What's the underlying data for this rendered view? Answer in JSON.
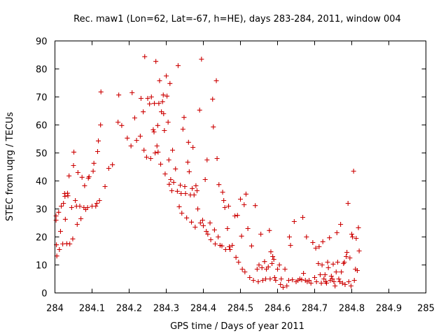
{
  "chart_data": {
    "type": "scatter",
    "title": "Rec. maw1 (Lon=62, Lat=-67, h=HE), days 283-284, 2011, window 004",
    "xlabel": "GPS time / Days of year 2011",
    "ylabel": "STEC from uqrg / TECUs",
    "xlim": [
      284,
      285
    ],
    "ylim": [
      0,
      90
    ],
    "xticks": [
      "284",
      "284.1",
      "284.2",
      "284.3",
      "284.4",
      "284.5",
      "284.6",
      "284.7",
      "284.8",
      "284.9",
      "285"
    ],
    "yticks": [
      "0",
      "10",
      "20",
      "30",
      "40",
      "50",
      "60",
      "70",
      "80",
      "90"
    ],
    "grid": false,
    "legend": "none",
    "marker": "plus",
    "color": "#cc0000",
    "points": [
      [
        284.003,
        27.5
      ],
      [
        284.003,
        26
      ],
      [
        284.004,
        17.2
      ],
      [
        284.005,
        13.2
      ],
      [
        284.01,
        28.8
      ],
      [
        284.012,
        15.5
      ],
      [
        284.015,
        22
      ],
      [
        284.017,
        31
      ],
      [
        284.021,
        17.5
      ],
      [
        284.023,
        32
      ],
      [
        284.026,
        35.5
      ],
      [
        284.027,
        34.5
      ],
      [
        284.028,
        26.3
      ],
      [
        284.032,
        17.6
      ],
      [
        284.034,
        35.6
      ],
      [
        284.035,
        34.7
      ],
      [
        284.038,
        41.8
      ],
      [
        284.04,
        17.5
      ],
      [
        284.045,
        30.5
      ],
      [
        284.048,
        19.3
      ],
      [
        284.05,
        45.5
      ],
      [
        284.051,
        50.3
      ],
      [
        284.055,
        33
      ],
      [
        284.058,
        31
      ],
      [
        284.06,
        24.5
      ],
      [
        284.062,
        43
      ],
      [
        284.067,
        31
      ],
      [
        284.07,
        26.5
      ],
      [
        284.073,
        41.3
      ],
      [
        284.078,
        30.5
      ],
      [
        284.08,
        38.3
      ],
      [
        284.083,
        29.8
      ],
      [
        284.088,
        30.5
      ],
      [
        284.09,
        41
      ],
      [
        284.092,
        41.5
      ],
      [
        284.1,
        31
      ],
      [
        284.103,
        43.5
      ],
      [
        284.105,
        46.3
      ],
      [
        284.11,
        31
      ],
      [
        284.113,
        32
      ],
      [
        284.115,
        50.5
      ],
      [
        284.117,
        54.3
      ],
      [
        284.12,
        33
      ],
      [
        284.123,
        60
      ],
      [
        284.124,
        71.8
      ],
      [
        284.135,
        38
      ],
      [
        284.145,
        44.5
      ],
      [
        284.155,
        45.8
      ],
      [
        284.17,
        61
      ],
      [
        284.172,
        70.7
      ],
      [
        284.18,
        59.8
      ],
      [
        284.195,
        55.3
      ],
      [
        284.205,
        52.5
      ],
      [
        284.208,
        71.5
      ],
      [
        284.215,
        62.5
      ],
      [
        284.22,
        54.5
      ],
      [
        284.23,
        56
      ],
      [
        284.232,
        69.5
      ],
      [
        284.238,
        64.7
      ],
      [
        284.24,
        51
      ],
      [
        284.242,
        84.4
      ],
      [
        284.247,
        48.5
      ],
      [
        284.25,
        69.5
      ],
      [
        284.255,
        67.5
      ],
      [
        284.258,
        48
      ],
      [
        284.26,
        70
      ],
      [
        284.265,
        58.3
      ],
      [
        284.267,
        57.5
      ],
      [
        284.268,
        67.7
      ],
      [
        284.27,
        50
      ],
      [
        284.272,
        82.7
      ],
      [
        284.275,
        52.5
      ],
      [
        284.277,
        59.8
      ],
      [
        284.278,
        50.3
      ],
      [
        284.28,
        67.7
      ],
      [
        284.282,
        75.8
      ],
      [
        284.285,
        46
      ],
      [
        284.287,
        64.7
      ],
      [
        284.29,
        68.3
      ],
      [
        284.292,
        70.7
      ],
      [
        284.293,
        64
      ],
      [
        284.295,
        58
      ],
      [
        284.297,
        42.5
      ],
      [
        284.3,
        77.5
      ],
      [
        284.302,
        70.3
      ],
      [
        284.305,
        61
      ],
      [
        284.307,
        47.5
      ],
      [
        284.308,
        38.8
      ],
      [
        284.31,
        74.8
      ],
      [
        284.312,
        40.5
      ],
      [
        284.315,
        36.5
      ],
      [
        284.317,
        51
      ],
      [
        284.32,
        39.5
      ],
      [
        284.325,
        44.3
      ],
      [
        284.33,
        36.3
      ],
      [
        284.332,
        81.2
      ],
      [
        284.335,
        30.8
      ],
      [
        284.338,
        38.5
      ],
      [
        284.34,
        35.5
      ],
      [
        284.342,
        28.5
      ],
      [
        284.345,
        58.5
      ],
      [
        284.348,
        62.7
      ],
      [
        284.35,
        38
      ],
      [
        284.352,
        35.5
      ],
      [
        284.355,
        26.8
      ],
      [
        284.358,
        46.7
      ],
      [
        284.36,
        53.8
      ],
      [
        284.362,
        43.3
      ],
      [
        284.365,
        35
      ],
      [
        284.368,
        25.3
      ],
      [
        284.37,
        37.3
      ],
      [
        284.372,
        52
      ],
      [
        284.375,
        35
      ],
      [
        284.378,
        23.5
      ],
      [
        284.38,
        38.3
      ],
      [
        284.383,
        36.5
      ],
      [
        284.385,
        30
      ],
      [
        284.39,
        65.3
      ],
      [
        284.392,
        25
      ],
      [
        284.395,
        83.5
      ],
      [
        284.398,
        26
      ],
      [
        284.4,
        24
      ],
      [
        284.405,
        40.5
      ],
      [
        284.408,
        22
      ],
      [
        284.41,
        47.5
      ],
      [
        284.412,
        21
      ],
      [
        284.418,
        25
      ],
      [
        284.42,
        19
      ],
      [
        284.425,
        69.2
      ],
      [
        284.427,
        59.3
      ],
      [
        284.43,
        22.5
      ],
      [
        284.432,
        17.5
      ],
      [
        284.435,
        75.8
      ],
      [
        284.437,
        48
      ],
      [
        284.44,
        20
      ],
      [
        284.442,
        38.7
      ],
      [
        284.445,
        17
      ],
      [
        284.45,
        16.8
      ],
      [
        284.452,
        36
      ],
      [
        284.455,
        33
      ],
      [
        284.458,
        30.5
      ],
      [
        284.46,
        15.5
      ],
      [
        284.465,
        23
      ],
      [
        284.468,
        31
      ],
      [
        284.47,
        16.5
      ],
      [
        284.472,
        15.5
      ],
      [
        284.478,
        17
      ],
      [
        284.485,
        27.5
      ],
      [
        284.488,
        12.7
      ],
      [
        284.492,
        27.7
      ],
      [
        284.495,
        11
      ],
      [
        284.5,
        33.5
      ],
      [
        284.503,
        20.3
      ],
      [
        284.505,
        8.5
      ],
      [
        284.51,
        31.5
      ],
      [
        284.512,
        7.5
      ],
      [
        284.515,
        35.3
      ],
      [
        284.52,
        23
      ],
      [
        284.525,
        5.5
      ],
      [
        284.53,
        16.8
      ],
      [
        284.535,
        4.5
      ],
      [
        284.54,
        31.2
      ],
      [
        284.545,
        8.5
      ],
      [
        284.548,
        4
      ],
      [
        284.55,
        10
      ],
      [
        284.555,
        21
      ],
      [
        284.558,
        9
      ],
      [
        284.56,
        4.5
      ],
      [
        284.565,
        11.2
      ],
      [
        284.568,
        5
      ],
      [
        284.57,
        8.5
      ],
      [
        284.575,
        9.3
      ],
      [
        284.578,
        22.3
      ],
      [
        284.58,
        5
      ],
      [
        284.582,
        14.7
      ],
      [
        284.585,
        10.5
      ],
      [
        284.587,
        13
      ],
      [
        284.59,
        12
      ],
      [
        284.592,
        5.5
      ],
      [
        284.595,
        4.5
      ],
      [
        284.6,
        8.5
      ],
      [
        284.605,
        10
      ],
      [
        284.608,
        3
      ],
      [
        284.61,
        5
      ],
      [
        284.615,
        2
      ],
      [
        284.62,
        8.5
      ],
      [
        284.625,
        2.5
      ],
      [
        284.63,
        4.5
      ],
      [
        284.632,
        20
      ],
      [
        284.635,
        17
      ],
      [
        284.64,
        4.7
      ],
      [
        284.645,
        25.5
      ],
      [
        284.65,
        4
      ],
      [
        284.655,
        4.5
      ],
      [
        284.66,
        5
      ],
      [
        284.665,
        4.7
      ],
      [
        284.668,
        27
      ],
      [
        284.67,
        7
      ],
      [
        284.675,
        4.5
      ],
      [
        284.678,
        20
      ],
      [
        284.68,
        4
      ],
      [
        284.685,
        4.5
      ],
      [
        284.69,
        3.5
      ],
      [
        284.695,
        18
      ],
      [
        284.7,
        5.5
      ],
      [
        284.703,
        16
      ],
      [
        284.705,
        4
      ],
      [
        284.71,
        10.5
      ],
      [
        284.712,
        16.5
      ],
      [
        284.715,
        6.5
      ],
      [
        284.718,
        3.5
      ],
      [
        284.72,
        10
      ],
      [
        284.722,
        18.3
      ],
      [
        284.725,
        5
      ],
      [
        284.728,
        6.5
      ],
      [
        284.73,
        4
      ],
      [
        284.732,
        3.5
      ],
      [
        284.735,
        11
      ],
      [
        284.737,
        9
      ],
      [
        284.74,
        19.7
      ],
      [
        284.742,
        4.5
      ],
      [
        284.745,
        6
      ],
      [
        284.748,
        5
      ],
      [
        284.75,
        10.3
      ],
      [
        284.752,
        4
      ],
      [
        284.755,
        2.5
      ],
      [
        284.758,
        7.5
      ],
      [
        284.76,
        21.5
      ],
      [
        284.762,
        11
      ],
      [
        284.765,
        5
      ],
      [
        284.768,
        4
      ],
      [
        284.77,
        24.5
      ],
      [
        284.772,
        7.5
      ],
      [
        284.775,
        3.5
      ],
      [
        284.778,
        10.5
      ],
      [
        284.78,
        11
      ],
      [
        284.782,
        3
      ],
      [
        284.785,
        13
      ],
      [
        284.787,
        14.5
      ],
      [
        284.79,
        32
      ],
      [
        284.792,
        4
      ],
      [
        284.795,
        12.5
      ],
      [
        284.798,
        2.5
      ],
      [
        284.8,
        21
      ],
      [
        284.802,
        20
      ],
      [
        284.805,
        43.5
      ],
      [
        284.807,
        4.5
      ],
      [
        284.81,
        8.5
      ],
      [
        284.812,
        19.5
      ],
      [
        284.815,
        8
      ],
      [
        284.818,
        23.3
      ],
      [
        284.82,
        15
      ]
    ]
  }
}
